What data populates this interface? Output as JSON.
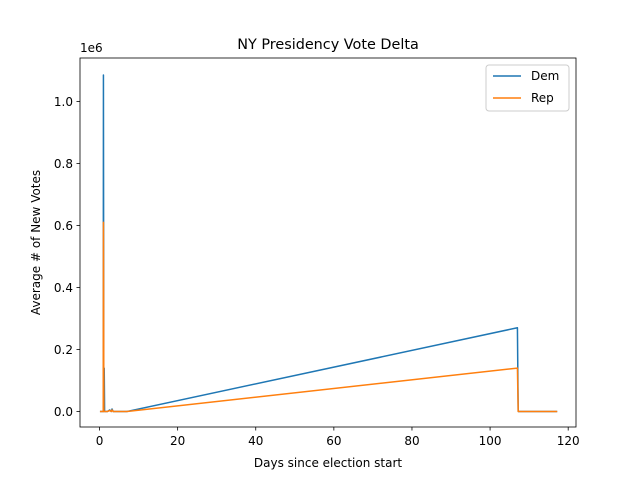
{
  "chart_data": {
    "type": "line",
    "title": "NY Presidency Vote Delta",
    "xlabel": "Days since election start",
    "ylabel": "Average # of New Votes",
    "y_offset_label": "1e6",
    "xlim": [
      -5,
      122
    ],
    "ylim": [
      -50000,
      1140000
    ],
    "xticks": [
      0,
      20,
      40,
      60,
      80,
      100,
      120
    ],
    "xtick_labels": [
      "0",
      "20",
      "40",
      "60",
      "80",
      "100",
      "120"
    ],
    "yticks": [
      0,
      200000,
      400000,
      600000,
      800000,
      1000000
    ],
    "ytick_labels": [
      "0.0",
      "0.2",
      "0.4",
      "0.6",
      "0.8",
      "1.0"
    ],
    "grid": false,
    "legend": "top-right",
    "series": [
      {
        "name": "Dem",
        "color": "#1f77b4",
        "points": [
          [
            0.3,
            0
          ],
          [
            0.8,
            0
          ],
          [
            0.95,
            0
          ],
          [
            1.0,
            1085000
          ],
          [
            1.1,
            0
          ],
          [
            1.2,
            140000
          ],
          [
            1.3,
            0
          ],
          [
            1.45,
            0
          ],
          [
            2.0,
            0
          ],
          [
            2.6,
            5000
          ],
          [
            3.0,
            0
          ],
          [
            3.2,
            8000
          ],
          [
            3.5,
            0
          ],
          [
            5.0,
            0
          ],
          [
            7.0,
            0
          ],
          [
            107.0,
            270000
          ],
          [
            107.2,
            0
          ],
          [
            117.0,
            0
          ]
        ]
      },
      {
        "name": "Rep",
        "color": "#ff7f0e",
        "points": [
          [
            0.3,
            0
          ],
          [
            0.8,
            0
          ],
          [
            0.95,
            0
          ],
          [
            1.0,
            610000
          ],
          [
            1.05,
            360000
          ],
          [
            1.1,
            0
          ],
          [
            1.3,
            0
          ],
          [
            1.45,
            0
          ],
          [
            2.0,
            0
          ],
          [
            2.6,
            3000
          ],
          [
            3.0,
            0
          ],
          [
            3.2,
            5000
          ],
          [
            3.5,
            0
          ],
          [
            5.0,
            0
          ],
          [
            7.0,
            0
          ],
          [
            107.0,
            140000
          ],
          [
            107.2,
            0
          ],
          [
            117.0,
            0
          ]
        ]
      }
    ]
  }
}
